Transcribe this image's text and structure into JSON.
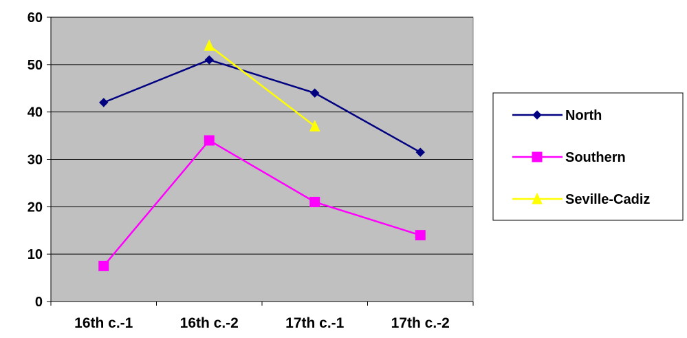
{
  "chart_data": {
    "type": "line",
    "title": "",
    "xlabel": "",
    "ylabel": "",
    "categories": [
      "16th c.-1",
      "16th c.-2",
      "17th c.-1",
      "17th c.-2"
    ],
    "ylim": [
      0,
      60
    ],
    "yticks": [
      0,
      10,
      20,
      30,
      40,
      50,
      60
    ],
    "grid": true,
    "legend_position": "right",
    "plot_background": "#C0C0C0",
    "series": [
      {
        "name": "North",
        "color": "#000080",
        "marker": "diamond",
        "values": [
          42,
          51,
          44,
          31.5
        ]
      },
      {
        "name": "Southern",
        "color": "#FF00FF",
        "marker": "square",
        "values": [
          7.5,
          34,
          21,
          14
        ]
      },
      {
        "name": "Seville-Cadiz",
        "color": "#FFFF00",
        "marker": "triangle",
        "values": [
          null,
          54,
          37,
          null
        ]
      }
    ]
  }
}
